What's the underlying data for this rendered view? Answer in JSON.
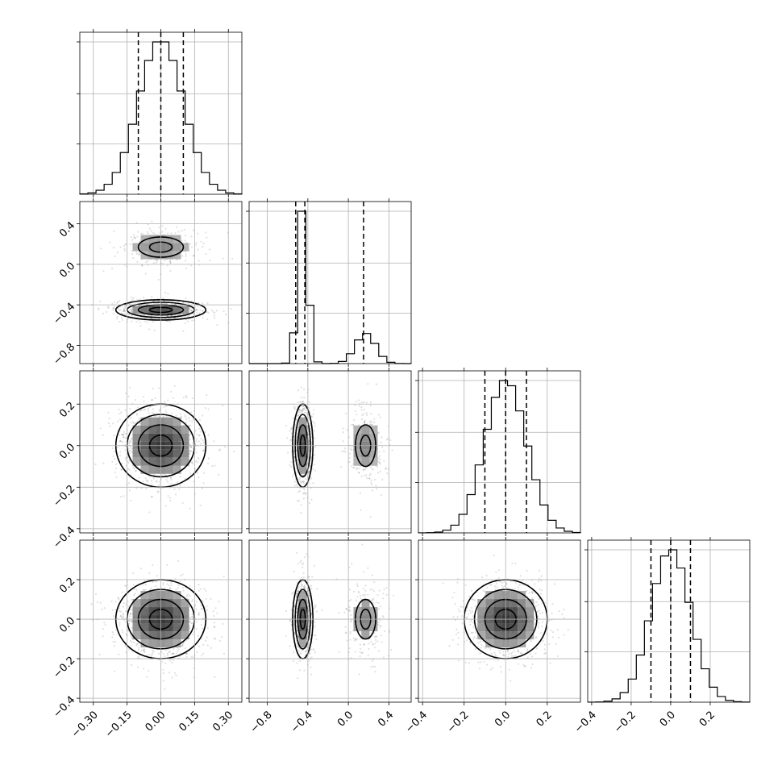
{
  "chart_data": {
    "type": "scatter",
    "subtype": "corner-plot",
    "title": "",
    "parameters": [
      "",
      "",
      "",
      ""
    ],
    "ranges": [
      [
        -0.36,
        0.36
      ],
      [
        -0.98,
        0.62
      ],
      [
        -0.42,
        0.36
      ],
      [
        -0.42,
        0.4
      ]
    ],
    "ticks": [
      [
        -0.3,
        -0.15,
        0.0,
        0.15,
        0.3
      ],
      [
        -0.8,
        -0.4,
        0.0,
        0.4
      ],
      [
        -0.4,
        -0.2,
        0.0,
        0.2
      ],
      [
        -0.4,
        -0.2,
        0.0,
        0.2
      ]
    ],
    "tick_labels": [
      [
        "−0.30",
        "−0.15",
        "0.00",
        "0.15",
        "0.30"
      ],
      [
        "−0.8",
        "−0.4",
        "0.0",
        "0.4"
      ],
      [
        "−0.4",
        "−0.2",
        "0.0",
        "0.2"
      ],
      [
        "−0.4",
        "−0.2",
        "0.0",
        "0.2"
      ]
    ],
    "quantiles": [
      [
        -0.1,
        0.0,
        0.1
      ],
      [
        -0.52,
        -0.43,
        0.15
      ],
      [
        -0.1,
        0.0,
        0.1
      ],
      [
        -0.1,
        0.0,
        0.1
      ]
    ],
    "modes": [
      [
        {
          "weight": 1.0,
          "mean": 0.0,
          "sd": 0.1
        }
      ],
      [
        {
          "weight": 0.72,
          "mean": -0.45,
          "sd": 0.05
        },
        {
          "weight": 0.28,
          "mean": 0.17,
          "sd": 0.1
        }
      ],
      [
        {
          "weight": 1.0,
          "mean": 0.0,
          "sd": 0.1
        }
      ],
      [
        {
          "weight": 1.0,
          "mean": 0.0,
          "sd": 0.1
        }
      ]
    ],
    "histogram_bins": 20,
    "grid": true,
    "contour_levels": [
      0.5,
      1.0,
      1.5,
      2.0
    ],
    "point_color": "#b0b0b0",
    "line_color": "#000000"
  }
}
